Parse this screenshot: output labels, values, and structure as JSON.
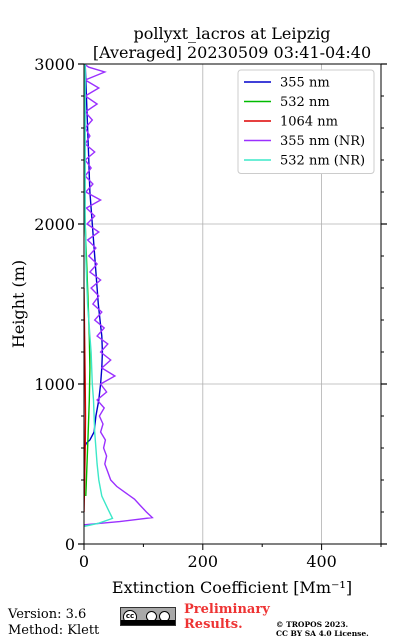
{
  "chart_data": {
    "type": "line",
    "title_line1": "pollyxt_lacros at Leipzig",
    "title_line2": "[Averaged] 20230509 03:41-04:40",
    "xlabel": "Extinction Coefficient [Mm⁻¹]",
    "ylabel": "Height (m)",
    "xlim": [
      0,
      500
    ],
    "ylim": [
      0,
      3000
    ],
    "xticks": [
      0,
      200,
      400
    ],
    "yticks": [
      0,
      1000,
      2000,
      3000
    ],
    "grid": true,
    "legend_position": "top-right",
    "series": [
      {
        "name": "355 nm",
        "color": "#0000cc",
        "points": [
          [
            0,
            600
          ],
          [
            4,
            630
          ],
          [
            10,
            650
          ],
          [
            17,
            700
          ],
          [
            20,
            800
          ],
          [
            25,
            900
          ],
          [
            28,
            1000
          ],
          [
            30,
            1100
          ],
          [
            31,
            1200
          ],
          [
            30,
            1300
          ],
          [
            27,
            1400
          ],
          [
            24,
            1500
          ],
          [
            22,
            1600
          ],
          [
            20,
            1700
          ],
          [
            18,
            1800
          ],
          [
            16,
            1900
          ],
          [
            14,
            2000
          ],
          [
            12,
            2100
          ],
          [
            10,
            2200
          ],
          [
            9,
            2300
          ],
          [
            8,
            2400
          ],
          [
            7,
            2500
          ],
          [
            6,
            2600
          ],
          [
            5,
            2700
          ],
          [
            4,
            2800
          ],
          [
            3,
            2900
          ],
          [
            2,
            3000
          ]
        ]
      },
      {
        "name": "532 nm",
        "color": "#00bb00",
        "points": [
          [
            3,
            300
          ],
          [
            5,
            500
          ],
          [
            7,
            700
          ],
          [
            9,
            900
          ],
          [
            10,
            1100
          ],
          [
            9,
            1300
          ],
          [
            7,
            1500
          ],
          [
            5,
            1700
          ],
          [
            3,
            1900
          ],
          [
            1,
            2100
          ]
        ]
      },
      {
        "name": "1064 nm",
        "color": "#dd0000",
        "points": [
          [
            0,
            200
          ],
          [
            1,
            400
          ],
          [
            2,
            600
          ],
          [
            2.5,
            800
          ],
          [
            2,
            1000
          ],
          [
            1,
            1300
          ],
          [
            0,
            1600
          ]
        ]
      },
      {
        "name": "355 nm (NR)",
        "color": "#9b30ff",
        "points": [
          [
            0,
            120
          ],
          [
            60,
            140
          ],
          [
            115,
            165
          ],
          [
            105,
            200
          ],
          [
            95,
            240
          ],
          [
            85,
            280
          ],
          [
            70,
            320
          ],
          [
            55,
            360
          ],
          [
            45,
            400
          ],
          [
            40,
            450
          ],
          [
            35,
            500
          ],
          [
            38,
            550
          ],
          [
            33,
            600
          ],
          [
            36,
            650
          ],
          [
            28,
            700
          ],
          [
            32,
            750
          ],
          [
            26,
            800
          ],
          [
            34,
            850
          ],
          [
            22,
            900
          ],
          [
            38,
            950
          ],
          [
            28,
            1000
          ],
          [
            52,
            1050
          ],
          [
            30,
            1100
          ],
          [
            45,
            1150
          ],
          [
            28,
            1200
          ],
          [
            40,
            1250
          ],
          [
            22,
            1300
          ],
          [
            34,
            1350
          ],
          [
            18,
            1400
          ],
          [
            30,
            1450
          ],
          [
            15,
            1500
          ],
          [
            25,
            1550
          ],
          [
            12,
            1600
          ],
          [
            28,
            1650
          ],
          [
            10,
            1700
          ],
          [
            22,
            1750
          ],
          [
            8,
            1800
          ],
          [
            20,
            1850
          ],
          [
            6,
            1900
          ],
          [
            25,
            1950
          ],
          [
            5,
            2000
          ],
          [
            18,
            2050
          ],
          [
            4,
            2100
          ],
          [
            28,
            2150
          ],
          [
            3,
            2200
          ],
          [
            15,
            2250
          ],
          [
            2,
            2300
          ],
          [
            12,
            2350
          ],
          [
            2,
            2400
          ],
          [
            18,
            2450
          ],
          [
            2,
            2500
          ],
          [
            10,
            2550
          ],
          [
            2,
            2600
          ],
          [
            14,
            2650
          ],
          [
            2,
            2700
          ],
          [
            22,
            2750
          ],
          [
            2,
            2800
          ],
          [
            25,
            2850
          ],
          [
            2,
            2900
          ],
          [
            35,
            2950
          ],
          [
            8,
            2980
          ],
          [
            0,
            3000
          ]
        ]
      },
      {
        "name": "532 nm (NR)",
        "color": "#3ce8c8",
        "points": [
          [
            0,
            110
          ],
          [
            25,
            130
          ],
          [
            48,
            160
          ],
          [
            40,
            220
          ],
          [
            30,
            300
          ],
          [
            25,
            400
          ],
          [
            22,
            500
          ],
          [
            20,
            600
          ],
          [
            18,
            700
          ],
          [
            17,
            800
          ],
          [
            16,
            900
          ],
          [
            14,
            1000
          ],
          [
            13,
            1100
          ],
          [
            12,
            1200
          ],
          [
            10,
            1300
          ],
          [
            8,
            1400
          ],
          [
            6,
            1500
          ],
          [
            5,
            1600
          ],
          [
            4,
            1700
          ],
          [
            3,
            1800
          ],
          [
            3,
            1900
          ],
          [
            2,
            2000
          ],
          [
            2,
            2100
          ],
          [
            2,
            2200
          ],
          [
            2,
            2300
          ],
          [
            2,
            2400
          ],
          [
            2,
            2500
          ],
          [
            2,
            2600
          ],
          [
            2,
            2700
          ],
          [
            2,
            2800
          ],
          [
            2,
            2900
          ],
          [
            2,
            3000
          ]
        ]
      }
    ]
  },
  "footer": {
    "version_line": "Version: 3.6",
    "method_line": "Method: Klett",
    "license_badge": "cc",
    "preliminary_line1": "Preliminary",
    "preliminary_line2": "Results.",
    "copyright_line1": "© TROPOS 2023.",
    "copyright_line2": "CC BY SA 4.0 License."
  }
}
